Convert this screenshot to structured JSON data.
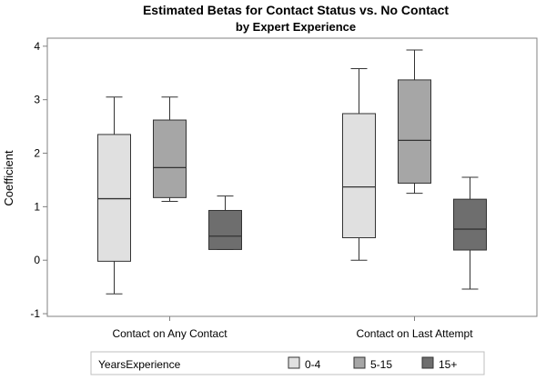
{
  "chart_data": {
    "type": "box",
    "title": "Estimated Betas for Contact Status vs. No Contact",
    "subtitle": "by Expert Experience",
    "ylabel": "Coefficient",
    "xlabel": "",
    "ylim": [
      -1.05,
      4.15
    ],
    "yticks": [
      -1,
      0,
      1,
      2,
      3,
      4
    ],
    "grid": false,
    "categories": [
      "Contact on Any Contact",
      "Contact on Last Attempt"
    ],
    "legend": {
      "title": "YearsExperience",
      "placement": "bottom"
    },
    "series": [
      {
        "name": "0-4",
        "color": "#e0e0e0",
        "boxes": [
          {
            "min": -0.63,
            "q1": -0.02,
            "median": 1.15,
            "q3": 2.35,
            "max": 3.05
          },
          {
            "min": 0.0,
            "q1": 0.42,
            "median": 1.37,
            "q3": 2.74,
            "max": 3.58
          }
        ]
      },
      {
        "name": "5-15",
        "color": "#a6a6a6",
        "boxes": [
          {
            "min": 1.1,
            "q1": 1.17,
            "median": 1.73,
            "q3": 2.62,
            "max": 3.05
          },
          {
            "min": 1.25,
            "q1": 1.44,
            "median": 2.24,
            "q3": 3.37,
            "max": 3.93
          }
        ]
      },
      {
        "name": "15+",
        "color": "#6e6e6e",
        "boxes": [
          {
            "min": 0.2,
            "q1": 0.2,
            "median": 0.45,
            "q3": 0.93,
            "max": 1.2
          },
          {
            "min": -0.54,
            "q1": 0.19,
            "median": 0.58,
            "q3": 1.14,
            "max": 1.55
          }
        ]
      }
    ]
  }
}
